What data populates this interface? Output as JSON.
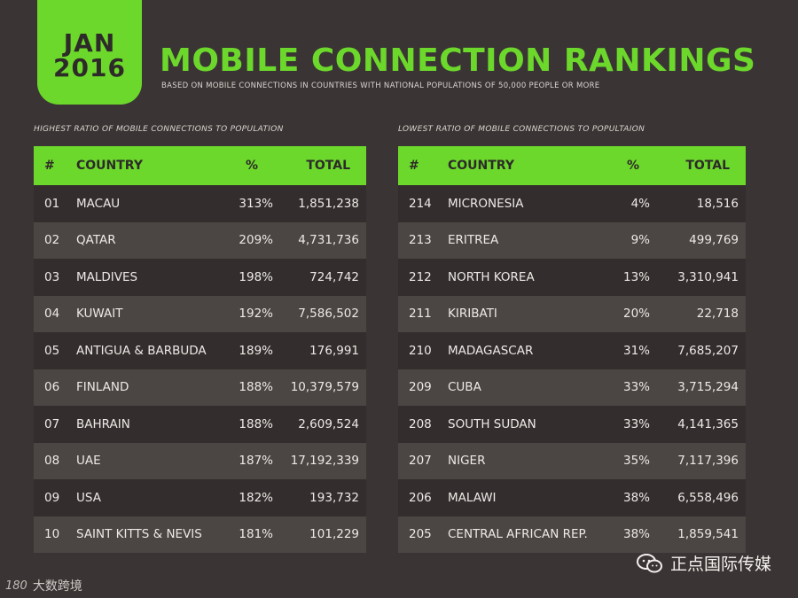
{
  "badge": {
    "month": "JAN",
    "year": "2016"
  },
  "title": "MOBILE CONNECTION RANKINGS",
  "subtitle": "BASED ON MOBILE CONNECTIONS IN COUNTRIES WITH NATIONAL POPULATIONS OF 50,000 PEOPLE OR MORE",
  "chart_data": [
    {
      "type": "table",
      "title": "HIGHEST RATIO OF MOBILE CONNECTIONS TO POPULATION",
      "columns": [
        "#",
        "COUNTRY",
        "%",
        "TOTAL"
      ],
      "rows": [
        [
          "01",
          "MACAU",
          "313%",
          "1,851,238"
        ],
        [
          "02",
          "QATAR",
          "209%",
          "4,731,736"
        ],
        [
          "03",
          "MALDIVES",
          "198%",
          "724,742"
        ],
        [
          "04",
          "KUWAIT",
          "192%",
          "7,586,502"
        ],
        [
          "05",
          "ANTIGUA & BARBUDA",
          "189%",
          "176,991"
        ],
        [
          "06",
          "FINLAND",
          "188%",
          "10,379,579"
        ],
        [
          "07",
          "BAHRAIN",
          "188%",
          "2,609,524"
        ],
        [
          "08",
          "UAE",
          "187%",
          "17,192,339"
        ],
        [
          "09",
          "USA",
          "182%",
          "193,732"
        ],
        [
          "10",
          "SAINT KITTS & NEVIS",
          "181%",
          "101,229"
        ]
      ]
    },
    {
      "type": "table",
      "title": "LOWEST RATIO OF MOBILE CONNECTIONS TO POPULTAION",
      "columns": [
        "#",
        "COUNTRY",
        "%",
        "TOTAL"
      ],
      "rows": [
        [
          "214",
          "MICRONESIA",
          "4%",
          "18,516"
        ],
        [
          "213",
          "ERITREA",
          "9%",
          "499,769"
        ],
        [
          "212",
          "NORTH KOREA",
          "13%",
          "3,310,941"
        ],
        [
          "211",
          "KIRIBATI",
          "20%",
          "22,718"
        ],
        [
          "210",
          "MADAGASCAR",
          "31%",
          "7,685,207"
        ],
        [
          "209",
          "CUBA",
          "33%",
          "3,715,294"
        ],
        [
          "208",
          "SOUTH SUDAN",
          "33%",
          "4,141,365"
        ],
        [
          "207",
          "NIGER",
          "35%",
          "7,117,396"
        ],
        [
          "206",
          "MALAWI",
          "38%",
          "6,558,496"
        ],
        [
          "205",
          "CENTRAL AFRICAN REP.",
          "38%",
          "1,859,541"
        ]
      ]
    }
  ],
  "watermarks": {
    "left_logo": "180",
    "left_text": "大数跨境",
    "right_icon": "wechat-icon",
    "right_text": "正点国际传媒"
  },
  "colors": {
    "background": "#3a3534",
    "accent": "#6cd82b",
    "row_dark": "#332e2d",
    "row_light": "#4b4544"
  }
}
